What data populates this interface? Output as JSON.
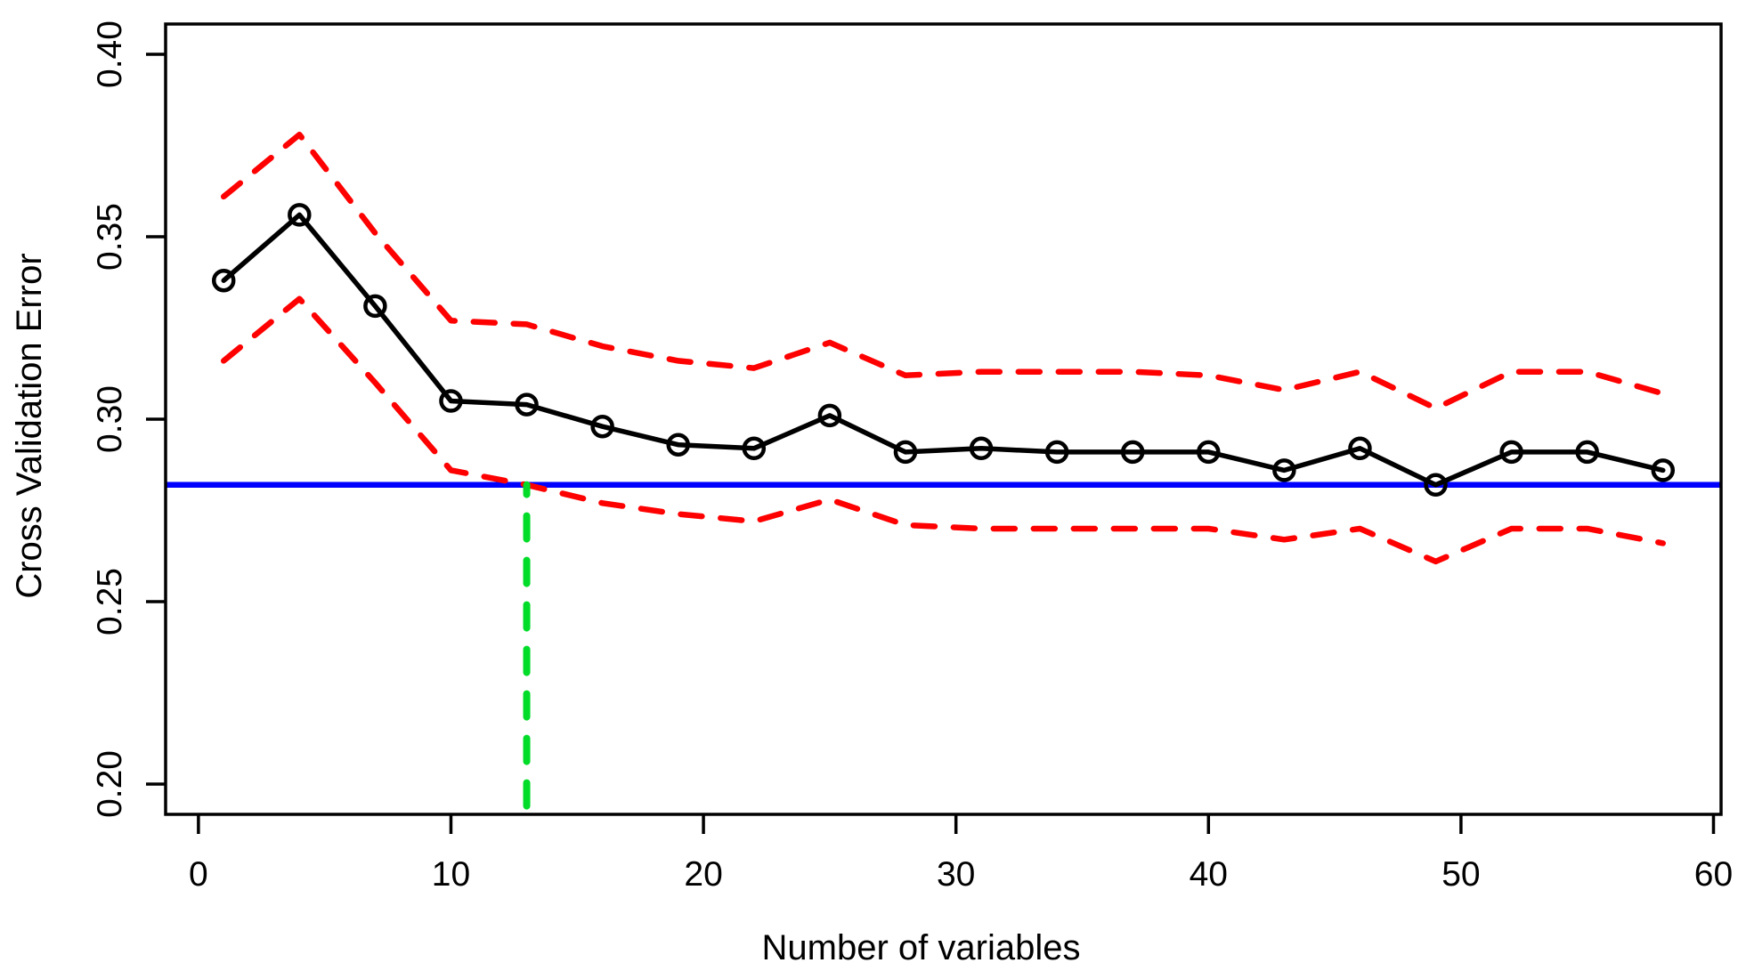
{
  "figure": {
    "background": "#ffffff",
    "plot_type_note": "R base-graphics style cross-validation error curve with ±1 SD dashed bounds"
  },
  "chart_data": {
    "type": "line",
    "title": "",
    "xlabel": "Number of variables",
    "ylabel": "Cross Validation Error",
    "grid": false,
    "legend": "none",
    "xlim": [
      -1.3,
      60.3
    ],
    "ylim": [
      0.1917,
      0.4083
    ],
    "x_ticks": [
      0,
      10,
      20,
      30,
      40,
      50,
      60
    ],
    "x_tick_labels": [
      "0",
      "10",
      "20",
      "30",
      "40",
      "50",
      "60"
    ],
    "y_ticks": [
      0.2,
      0.25,
      0.3,
      0.35,
      0.4
    ],
    "y_tick_labels": [
      "0.20",
      "0.25",
      "0.30",
      "0.35",
      "0.40"
    ],
    "x": [
      1,
      4,
      7,
      10,
      13,
      16,
      19,
      22,
      25,
      28,
      31,
      34,
      37,
      40,
      43,
      46,
      49,
      52,
      55,
      58
    ],
    "series": [
      {
        "name": "cv-error-mean",
        "color": "#000000",
        "style": "solid",
        "marker": "open-circle",
        "values": [
          0.338,
          0.356,
          0.331,
          0.305,
          0.304,
          0.298,
          0.293,
          0.292,
          0.301,
          0.291,
          0.292,
          0.291,
          0.291,
          0.291,
          0.286,
          0.292,
          0.282,
          0.291,
          0.291,
          0.286
        ]
      },
      {
        "name": "cv-error-upper-sd",
        "color": "#FF0000",
        "style": "dashed",
        "marker": "none",
        "values": [
          0.361,
          0.378,
          0.351,
          0.327,
          0.326,
          0.32,
          0.316,
          0.314,
          0.321,
          0.312,
          0.313,
          0.313,
          0.313,
          0.312,
          0.308,
          0.313,
          0.303,
          0.313,
          0.313,
          0.307
        ]
      },
      {
        "name": "cv-error-lower-sd",
        "color": "#FF0000",
        "style": "dashed",
        "marker": "none",
        "values": [
          0.316,
          0.333,
          0.31,
          0.286,
          0.282,
          0.277,
          0.274,
          0.272,
          0.278,
          0.271,
          0.27,
          0.27,
          0.27,
          0.27,
          0.267,
          0.27,
          0.261,
          0.27,
          0.27,
          0.266
        ]
      }
    ],
    "reference_lines": [
      {
        "name": "min-cv-error-hline",
        "orientation": "horizontal",
        "value": 0.282,
        "color": "#0000FF",
        "style": "solid"
      },
      {
        "name": "selected-nvars-vline",
        "orientation": "vertical",
        "value": 13,
        "y_from": 0.194,
        "y_to": 0.282,
        "color": "#00DC28",
        "style": "dashed"
      }
    ]
  }
}
